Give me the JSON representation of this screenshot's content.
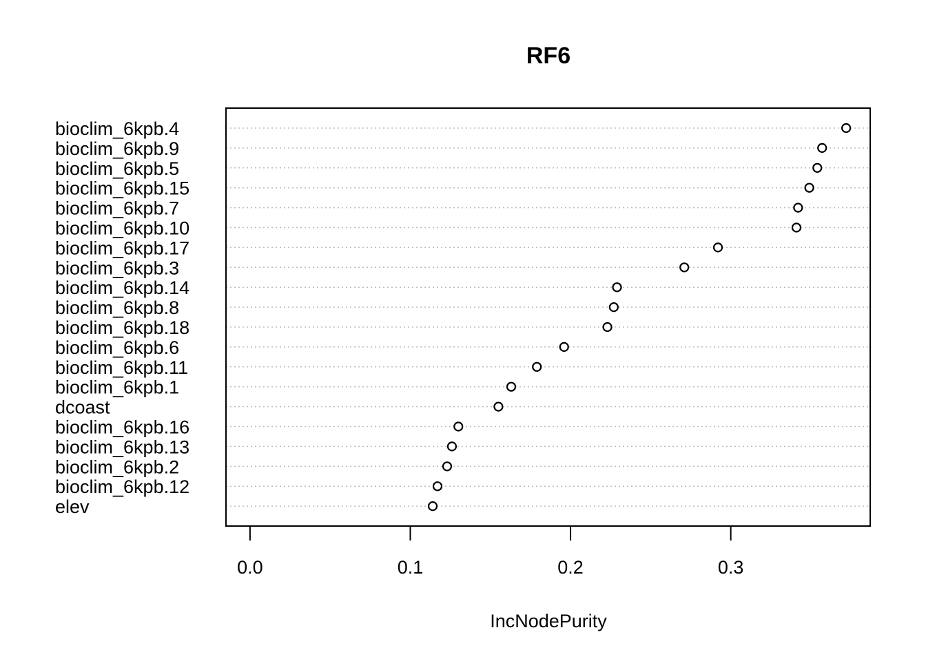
{
  "chart_data": {
    "type": "scatter",
    "title": "RF6",
    "xlabel": "IncNodePurity",
    "ylabel": "",
    "xlim": [
      -0.015,
      0.387
    ],
    "xticks": [
      0.0,
      0.1,
      0.2,
      0.3
    ],
    "xtick_labels": [
      "0.0",
      "0.1",
      "0.2",
      "0.3"
    ],
    "grid": "horizontal dotted",
    "legend": "none",
    "point_style": "open circle",
    "categories": [
      "bioclim_6kpb.4",
      "bioclim_6kpb.9",
      "bioclim_6kpb.5",
      "bioclim_6kpb.15",
      "bioclim_6kpb.7",
      "bioclim_6kpb.10",
      "bioclim_6kpb.17",
      "bioclim_6kpb.3",
      "bioclim_6kpb.14",
      "bioclim_6kpb.8",
      "bioclim_6kpb.18",
      "bioclim_6kpb.6",
      "bioclim_6kpb.11",
      "bioclim_6kpb.1",
      "dcoast",
      "bioclim_6kpb.16",
      "bioclim_6kpb.13",
      "bioclim_6kpb.2",
      "bioclim_6kpb.12",
      "elev"
    ],
    "values": [
      0.372,
      0.357,
      0.354,
      0.349,
      0.342,
      0.341,
      0.292,
      0.271,
      0.229,
      0.227,
      0.223,
      0.196,
      0.179,
      0.163,
      0.155,
      0.13,
      0.126,
      0.123,
      0.117,
      0.114
    ]
  }
}
